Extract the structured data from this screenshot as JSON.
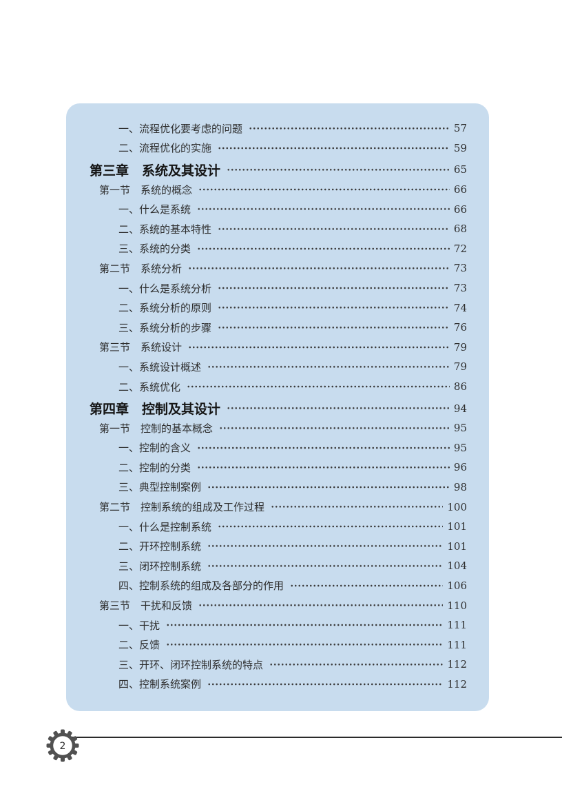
{
  "toc": {
    "rows": [
      {
        "level": "item",
        "label": "一、流程优化要考虑的问题",
        "page": "57"
      },
      {
        "level": "item",
        "label": "二、流程优化的实施",
        "page": "59"
      },
      {
        "level": "chapter",
        "label": "第三章　系统及其设计",
        "page": "65"
      },
      {
        "level": "section",
        "label": "第一节　系统的概念",
        "page": "66"
      },
      {
        "level": "item",
        "label": "一、什么是系统",
        "page": "66"
      },
      {
        "level": "item",
        "label": "二、系统的基本特性",
        "page": "68"
      },
      {
        "level": "item",
        "label": "三、系统的分类",
        "page": "72"
      },
      {
        "level": "section",
        "label": "第二节　系统分析",
        "page": "73"
      },
      {
        "level": "item",
        "label": "一、什么是系统分析",
        "page": "73"
      },
      {
        "level": "item",
        "label": "二、系统分析的原则",
        "page": "74"
      },
      {
        "level": "item",
        "label": "三、系统分析的步骤",
        "page": "76"
      },
      {
        "level": "section",
        "label": "第三节　系统设计",
        "page": "79"
      },
      {
        "level": "item",
        "label": "一、系统设计概述",
        "page": "79"
      },
      {
        "level": "item",
        "label": "二、系统优化",
        "page": "86"
      },
      {
        "level": "chapter",
        "label": "第四章　控制及其设计",
        "page": "94"
      },
      {
        "level": "section",
        "label": "第一节　控制的基本概念",
        "page": "95"
      },
      {
        "level": "item",
        "label": "一、控制的含义",
        "page": "95"
      },
      {
        "level": "item",
        "label": "二、控制的分类",
        "page": "96"
      },
      {
        "level": "item",
        "label": "三、典型控制案例",
        "page": "98"
      },
      {
        "level": "section",
        "label": "第二节　控制系统的组成及工作过程",
        "page": "100"
      },
      {
        "level": "item",
        "label": "一、什么是控制系统",
        "page": "101"
      },
      {
        "level": "item",
        "label": "二、开环控制系统",
        "page": "101"
      },
      {
        "level": "item",
        "label": "三、闭环控制系统",
        "page": "104"
      },
      {
        "level": "item",
        "label": "四、控制系统的组成及各部分的作用",
        "page": "106"
      },
      {
        "level": "section",
        "label": "第三节　干扰和反馈",
        "page": "110"
      },
      {
        "level": "item",
        "label": "一、干扰",
        "page": "111"
      },
      {
        "level": "item",
        "label": "二、反馈",
        "page": "111"
      },
      {
        "level": "item",
        "label": "三、开环、闭环控制系统的特点",
        "page": "112"
      },
      {
        "level": "item",
        "label": "四、控制系统案例",
        "page": "112"
      }
    ]
  },
  "footer": {
    "page_number": "2",
    "icon": "gear-icon"
  },
  "colors": {
    "panel_background": "#c8dcee",
    "text": "#2e2e2e",
    "chapter_text": "#151515",
    "footer_line": "#2b2b2b",
    "gear_body": "#515151"
  }
}
